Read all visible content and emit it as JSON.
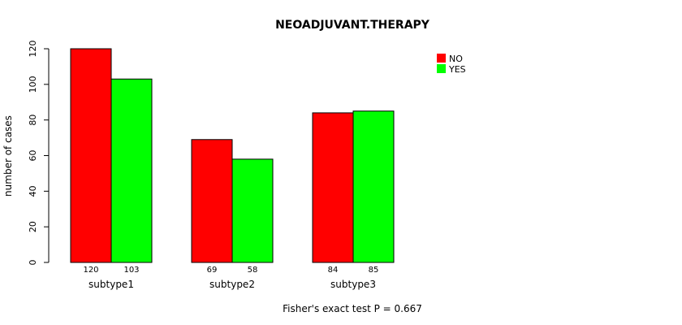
{
  "chart_data": {
    "type": "bar",
    "title": "NEOADJUVANT.THERAPY",
    "xlabel": "",
    "ylabel": "number of cases",
    "categories": [
      "subtype1",
      "subtype2",
      "subtype3"
    ],
    "series": [
      {
        "name": "NO",
        "values": [
          120,
          69,
          84
        ],
        "color": "#ff0000"
      },
      {
        "name": "YES",
        "values": [
          103,
          58,
          85
        ],
        "color": "#00ff00"
      }
    ],
    "ylim": [
      0,
      120
    ],
    "yticks": [
      0,
      20,
      40,
      60,
      80,
      100,
      120
    ],
    "legend_position": "top-right",
    "grid": false,
    "footnote": "Fisher's exact test P = 0.667"
  }
}
